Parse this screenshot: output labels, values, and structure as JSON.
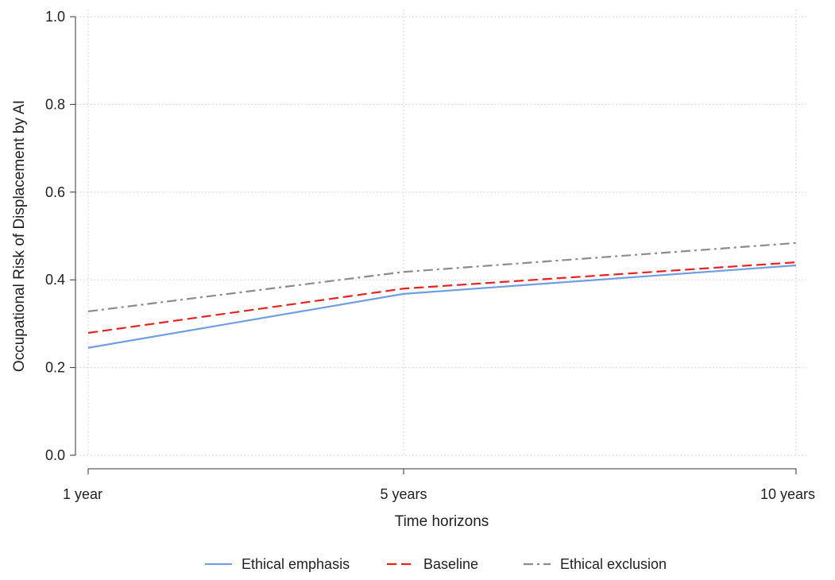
{
  "chart_data": {
    "type": "line",
    "categories": [
      "1 year",
      "5 years",
      "10 years"
    ],
    "xlabel": "Time horizons",
    "ylabel": "Occupational Risk of Displacement by AI",
    "ylim": [
      0,
      1
    ],
    "yticks": [
      "0.0",
      "0.2",
      "0.4",
      "0.6",
      "0.8",
      "1.0"
    ],
    "grid": true,
    "legend_position": "bottom",
    "series": [
      {
        "name": "Ethical emphasis",
        "values": [
          0.245,
          0.368,
          0.433
        ],
        "color": "#6f9fdc",
        "style": "solid"
      },
      {
        "name": "Baseline",
        "values": [
          0.279,
          0.38,
          0.44
        ],
        "color": "#e8221f",
        "style": "dashed"
      },
      {
        "name": "Ethical exclusion",
        "values": [
          0.328,
          0.418,
          0.484
        ],
        "color": "#8c8c8c",
        "style": "dashdot"
      }
    ]
  }
}
